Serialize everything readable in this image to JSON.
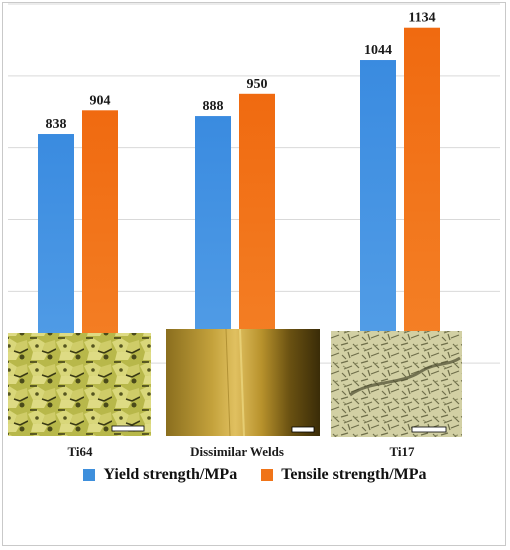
{
  "chart_data": {
    "type": "bar",
    "title": "",
    "xlabel": "",
    "ylabel": "",
    "categories": [
      "Ti64",
      "Dissimilar Welds",
      "Ti17"
    ],
    "series": [
      {
        "name": "Yield strength/MPa",
        "values": [
          838,
          888,
          1044
        ],
        "color": "#3e8fdc"
      },
      {
        "name": "Tensile strength/MPa",
        "values": [
          904,
          950,
          1134
        ],
        "color": "#f07418"
      }
    ],
    "ylim": [
      0,
      1200
    ],
    "grid": true,
    "legend": "bottom",
    "insets": [
      "Ti64 micrograph",
      "Dissimilar Welds micrograph",
      "Ti17 micrograph"
    ]
  }
}
